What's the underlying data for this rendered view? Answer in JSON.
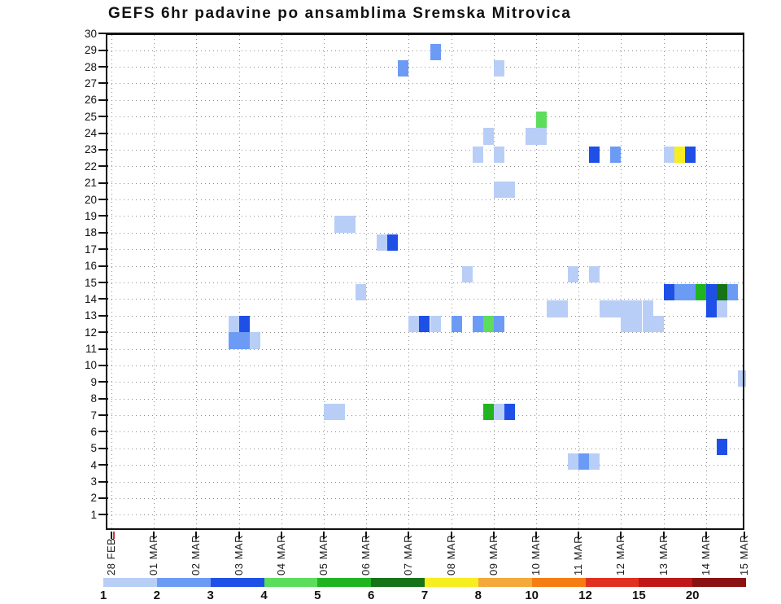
{
  "title": "GEFS 6hr padavine po ansamblima Sremska Mitrovica",
  "chart_data": {
    "type": "heatmap",
    "title": "GEFS 6hr padavine po ansamblima Sremska Mitrovica",
    "xlabel": "",
    "ylabel": "",
    "x_axis": {
      "tick_labels": [
        "28 FEB",
        "01 MAR",
        "02 MAR",
        "03 MAR",
        "04 MAR",
        "05 MAR",
        "06 MAR",
        "07 MAR",
        "08 MAR",
        "09 MAR",
        "10 MAR",
        "11 MAR",
        "12 MAR",
        "13 MAR",
        "14 MAR",
        "15 MAR"
      ],
      "quarters_per_day": 4,
      "grid": "dotted"
    },
    "y_axis": {
      "tick_labels": [
        "30",
        "29",
        "28",
        "27",
        "26",
        "25",
        "24",
        "23",
        "22",
        "21",
        "20",
        "19",
        "18",
        "17",
        "16",
        "15",
        "14",
        "13",
        "12",
        "11",
        "10",
        "9",
        "8",
        "7",
        "6",
        "5",
        "4",
        "3",
        "2",
        "1"
      ],
      "min": 1,
      "max": 30,
      "grid": "dotted"
    },
    "legend": {
      "position": "bottom",
      "boundary_labels": [
        "1",
        "2",
        "3",
        "4",
        "5",
        "6",
        "7",
        "8",
        "10",
        "12",
        "15",
        "20"
      ],
      "segment_colors": [
        "#b9cef7",
        "#6c9bf5",
        "#1e50e8",
        "#5cdd5c",
        "#21b421",
        "#177317",
        "#f6ee20",
        "#f4a93b",
        "#f57d13",
        "#e03020",
        "#c01717",
        "#8a1210"
      ]
    },
    "level_palette": [
      "#b9cef7",
      "#6c9bf5",
      "#1e50e8",
      "#5cdd5c",
      "#21b421",
      "#177317",
      "#f6ee20"
    ],
    "cells": [
      {
        "row": 28.9,
        "q": 30,
        "level": 2
      },
      {
        "row": 27.9,
        "q": 27,
        "level": 2
      },
      {
        "row": 27.9,
        "q": 36,
        "level": 1
      },
      {
        "row": 24.8,
        "q": 40,
        "level": 4
      },
      {
        "row": 23.8,
        "q": 35,
        "level": 1
      },
      {
        "row": 23.8,
        "q": 39,
        "level": 1
      },
      {
        "row": 23.8,
        "q": 40,
        "level": 1
      },
      {
        "row": 22.7,
        "q": 34,
        "level": 1
      },
      {
        "row": 22.7,
        "q": 36,
        "level": 1
      },
      {
        "row": 22.7,
        "q": 45,
        "level": 3
      },
      {
        "row": 22.7,
        "q": 47,
        "level": 2
      },
      {
        "row": 22.7,
        "q": 52,
        "level": 1
      },
      {
        "row": 22.7,
        "q": 53,
        "level": 7
      },
      {
        "row": 22.7,
        "q": 54,
        "level": 3
      },
      {
        "row": 20.6,
        "q": 36,
        "level": 1
      },
      {
        "row": 20.6,
        "q": 37,
        "level": 1
      },
      {
        "row": 18.5,
        "q": 21,
        "level": 1
      },
      {
        "row": 18.5,
        "q": 22,
        "level": 1
      },
      {
        "row": 17.4,
        "q": 25,
        "level": 1
      },
      {
        "row": 17.4,
        "q": 26,
        "level": 3
      },
      {
        "row": 15.5,
        "q": 33,
        "level": 1
      },
      {
        "row": 15.5,
        "q": 43,
        "level": 1
      },
      {
        "row": 15.5,
        "q": 45,
        "level": 1
      },
      {
        "row": 14.4,
        "q": 23,
        "level": 1
      },
      {
        "row": 14.4,
        "q": 52,
        "level": 3
      },
      {
        "row": 14.4,
        "q": 53,
        "level": 2
      },
      {
        "row": 14.4,
        "q": 54,
        "level": 2
      },
      {
        "row": 14.4,
        "q": 55,
        "level": 5
      },
      {
        "row": 14.4,
        "q": 56,
        "level": 3
      },
      {
        "row": 14.4,
        "q": 57,
        "level": 6
      },
      {
        "row": 14.4,
        "q": 58,
        "level": 2
      },
      {
        "row": 13.4,
        "q": 41,
        "level": 1
      },
      {
        "row": 13.4,
        "q": 42,
        "level": 1
      },
      {
        "row": 13.4,
        "q": 46,
        "level": 1
      },
      {
        "row": 13.4,
        "q": 47,
        "level": 1
      },
      {
        "row": 13.4,
        "q": 48,
        "level": 1
      },
      {
        "row": 13.4,
        "q": 49,
        "level": 1
      },
      {
        "row": 13.4,
        "q": 50,
        "level": 1
      },
      {
        "row": 13.4,
        "q": 56,
        "level": 3
      },
      {
        "row": 13.4,
        "q": 57,
        "level": 1
      },
      {
        "row": 12.5,
        "q": 11,
        "level": 1
      },
      {
        "row": 12.5,
        "q": 12,
        "level": 3
      },
      {
        "row": 12.5,
        "q": 28,
        "level": 1
      },
      {
        "row": 12.5,
        "q": 29,
        "level": 3
      },
      {
        "row": 12.5,
        "q": 30,
        "level": 1
      },
      {
        "row": 12.5,
        "q": 32,
        "level": 2
      },
      {
        "row": 12.5,
        "q": 34,
        "level": 2
      },
      {
        "row": 12.5,
        "q": 35,
        "level": 4
      },
      {
        "row": 12.5,
        "q": 36,
        "level": 2
      },
      {
        "row": 12.5,
        "q": 48,
        "level": 1
      },
      {
        "row": 12.5,
        "q": 49,
        "level": 1
      },
      {
        "row": 12.5,
        "q": 50,
        "level": 1
      },
      {
        "row": 12.5,
        "q": 51,
        "level": 1
      },
      {
        "row": 11.5,
        "q": 11,
        "level": 2
      },
      {
        "row": 11.5,
        "q": 12,
        "level": 2
      },
      {
        "row": 11.5,
        "q": 13,
        "level": 1
      },
      {
        "row": 9.2,
        "q": 59,
        "level": 1
      },
      {
        "row": 7.2,
        "q": 20,
        "level": 1
      },
      {
        "row": 7.2,
        "q": 21,
        "level": 1
      },
      {
        "row": 7.2,
        "q": 35,
        "level": 5
      },
      {
        "row": 7.2,
        "q": 36,
        "level": 1
      },
      {
        "row": 7.2,
        "q": 37,
        "level": 3
      },
      {
        "row": 5.1,
        "q": 57,
        "level": 3
      },
      {
        "row": 4.2,
        "q": 43,
        "level": 1
      },
      {
        "row": 4.2,
        "q": 44,
        "level": 2
      },
      {
        "row": 4.2,
        "q": 45,
        "level": 1
      }
    ]
  }
}
